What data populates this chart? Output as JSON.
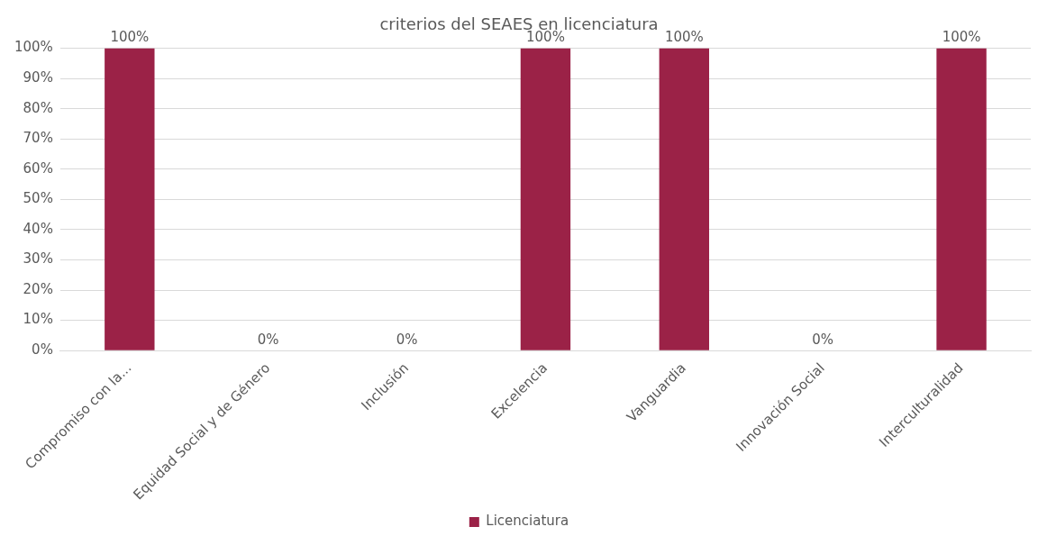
{
  "chart_data": {
    "type": "bar",
    "title": "criterios del SEAES en licenciatura",
    "categories": [
      "Compromiso con la...",
      "Equidad Social y de Género",
      "Inclusión",
      "Excelencia",
      "Vanguardia",
      "Innovación Social",
      "Interculturalidad"
    ],
    "series": [
      {
        "name": "Licenciatura",
        "color": "#9b2247",
        "values": [
          100,
          0,
          0,
          100,
          100,
          0,
          100
        ],
        "value_labels": [
          "100%",
          "0%",
          "0%",
          "100%",
          "100%",
          "0%",
          "100%"
        ]
      }
    ],
    "ylim": [
      0,
      100
    ],
    "yticks": [
      {
        "value": 0,
        "label": "0%"
      },
      {
        "value": 10,
        "label": "10%"
      },
      {
        "value": 20,
        "label": "20%"
      },
      {
        "value": 30,
        "label": "30%"
      },
      {
        "value": 40,
        "label": "40%"
      },
      {
        "value": 50,
        "label": "50%"
      },
      {
        "value": 60,
        "label": "60%"
      },
      {
        "value": 70,
        "label": "70%"
      },
      {
        "value": 80,
        "label": "80%"
      },
      {
        "value": 90,
        "label": "90%"
      },
      {
        "value": 100,
        "label": "100%"
      }
    ],
    "grid": "y",
    "legend": "bottom"
  }
}
